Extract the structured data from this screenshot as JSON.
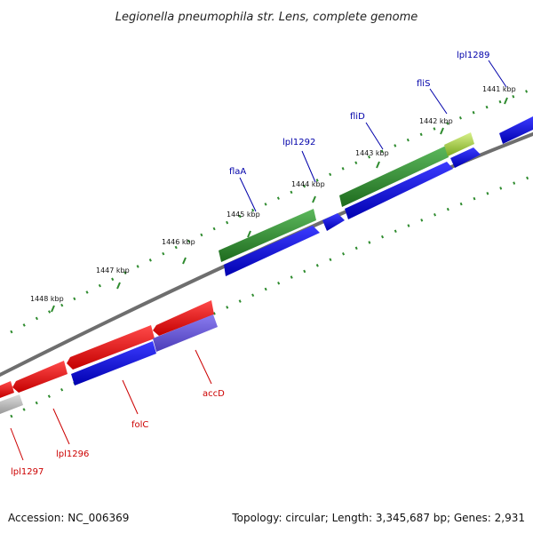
{
  "title": "Legionella pneumophila str. Lens, complete genome",
  "footer": {
    "accession": "Accession: NC_006369",
    "summary": "Topology: circular; Length: 3,345,687 bp; Genes: 2,931"
  },
  "colors": {
    "forward_gene": "#0000ee",
    "reverse_gene": "#ee0000",
    "rrna_like": "#2e8b2e",
    "fliS_highlight": "#9acd32",
    "partial": "#6a5acd",
    "other": "#bbbbbb",
    "backbone": "#777777",
    "tick": "#2e8b2e",
    "label_forward": "#0000aa",
    "label_reverse": "#cc0000"
  },
  "ticks": [
    "1441 kbp",
    "1442 kbp",
    "1443 kbp",
    "1444 kbp",
    "1445 kbp",
    "1446 kbp",
    "1447 kbp",
    "1448 kbp"
  ],
  "gene_labels": [
    {
      "name": "lpl1289",
      "strand": "forward"
    },
    {
      "name": "fliS",
      "strand": "forward"
    },
    {
      "name": "fliD",
      "strand": "forward"
    },
    {
      "name": "lpl1292",
      "strand": "forward"
    },
    {
      "name": "flaA",
      "strand": "forward"
    },
    {
      "name": "accD",
      "strand": "reverse"
    },
    {
      "name": "folC",
      "strand": "reverse"
    },
    {
      "name": "lpl1296",
      "strand": "reverse"
    },
    {
      "name": "lpl1297",
      "strand": "reverse"
    }
  ]
}
